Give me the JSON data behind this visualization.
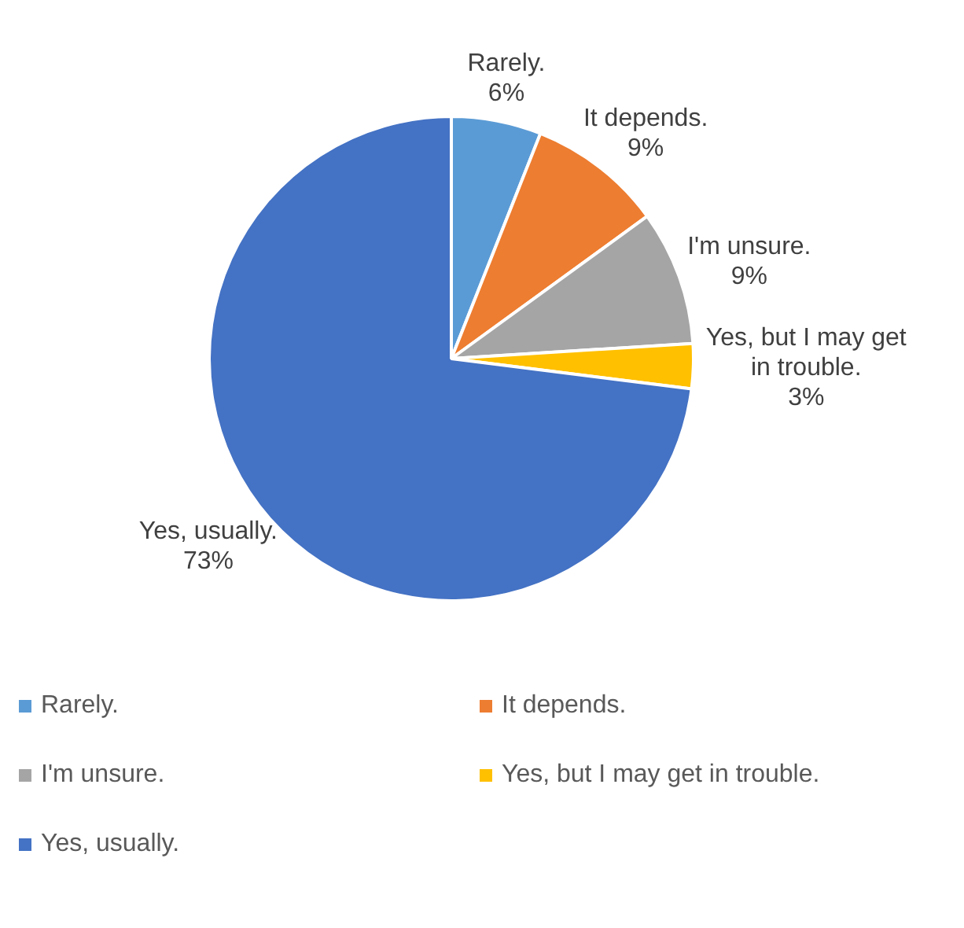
{
  "chart_data": {
    "type": "pie",
    "categories": [
      "Rarely.",
      "It depends.",
      "I'm unsure.",
      "Yes, but I may get in trouble.",
      "Yes, usually."
    ],
    "values": [
      6,
      9,
      9,
      3,
      73
    ],
    "value_labels": [
      "6%",
      "9%",
      "9%",
      "3%",
      "73%"
    ],
    "colors": [
      "#5b9bd5",
      "#ed7d31",
      "#a5a5a5",
      "#ffc000",
      "#4472c4"
    ],
    "legend": "bottom"
  }
}
